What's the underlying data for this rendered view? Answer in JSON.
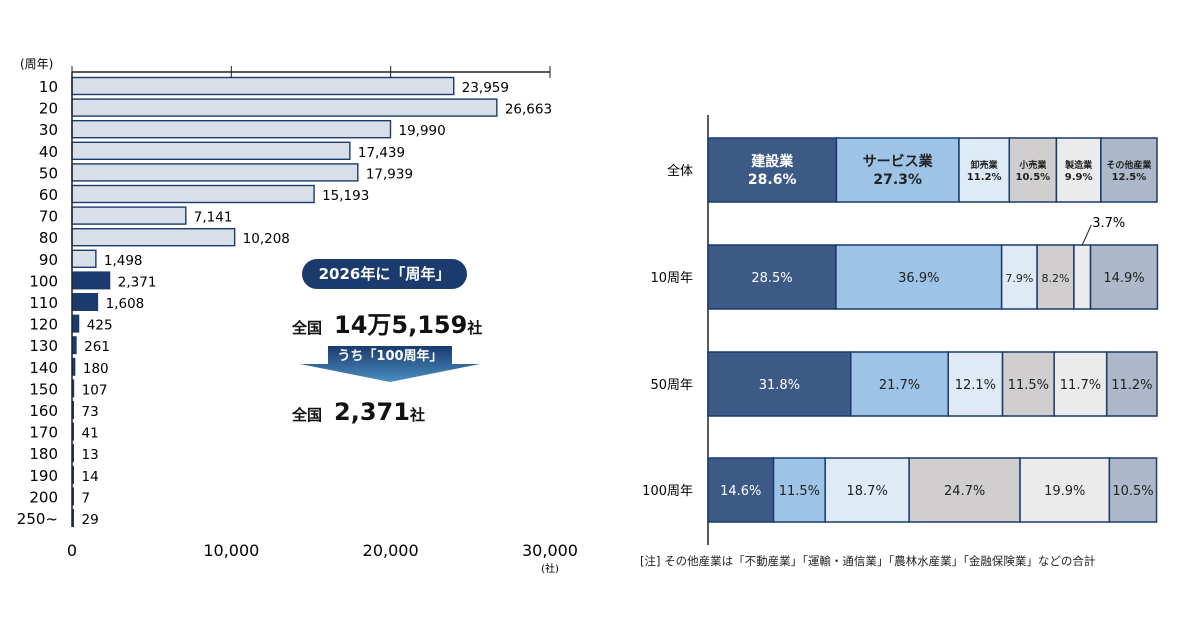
{
  "chart_data": [
    {
      "type": "bar",
      "orientation": "horizontal",
      "ylabel": "(周年)",
      "xunit": "(社)",
      "xlim": [
        0,
        30000
      ],
      "xticks": [
        "0",
        "10,000",
        "20,000",
        "30,000"
      ],
      "categories": [
        "10",
        "20",
        "30",
        "40",
        "50",
        "60",
        "70",
        "80",
        "90",
        "100",
        "110",
        "120",
        "130",
        "140",
        "150",
        "160",
        "170",
        "180",
        "190",
        "200",
        "250~"
      ],
      "values": [
        23959,
        26663,
        19990,
        17439,
        17939,
        15193,
        7141,
        10208,
        1498,
        2371,
        1608,
        425,
        261,
        180,
        107,
        73,
        41,
        13,
        14,
        7,
        29
      ],
      "labels": [
        "23,959",
        "26,663",
        "19,990",
        "17,439",
        "17,939",
        "15,193",
        "7,141",
        "10,208",
        "1,498",
        "2,371",
        "1,608",
        "425",
        "261",
        "180",
        "107",
        "73",
        "41",
        "13",
        "14",
        "7",
        "29"
      ],
      "highlight_from": "100",
      "colors": {
        "normal": "#d9dfe9",
        "highlight": "#1b3a6e",
        "border": "#1b3a6e"
      }
    },
    {
      "type": "bar",
      "orientation": "horizontal",
      "stacked": true,
      "percent": true,
      "categories": [
        "全体",
        "10周年",
        "50周年",
        "100周年"
      ],
      "series": [
        {
          "name": "建設業",
          "values": [
            28.6,
            28.5,
            31.8,
            14.6
          ],
          "color": "#3d5a87",
          "text": "#ffffff"
        },
        {
          "name": "サービス業",
          "values": [
            27.3,
            36.9,
            21.7,
            11.5
          ],
          "color": "#9dc3e6",
          "text": "#222222"
        },
        {
          "name": "卸売業",
          "values": [
            11.2,
            7.9,
            12.1,
            18.7
          ],
          "color": "#deeaf6",
          "text": "#222222"
        },
        {
          "name": "小売業",
          "values": [
            10.5,
            8.2,
            11.5,
            24.7
          ],
          "color": "#d0cece",
          "text": "#222222"
        },
        {
          "name": "製造業",
          "values": [
            9.9,
            3.7,
            11.7,
            19.9
          ],
          "color": "#ebebeb",
          "text": "#222222"
        },
        {
          "name": "その他産業",
          "values": [
            12.5,
            14.9,
            11.2,
            10.5
          ],
          "color": "#adb9ca",
          "text": "#222222"
        }
      ],
      "labels": [
        [
          "28.6%",
          "27.3%",
          "11.2%",
          "10.5%",
          "9.9%",
          "12.5%"
        ],
        [
          "28.5%",
          "36.9%",
          "7.9%",
          "8.2%",
          "3.7%",
          "14.9%"
        ],
        [
          "31.8%",
          "21.7%",
          "12.1%",
          "11.5%",
          "11.7%",
          "11.2%"
        ],
        [
          "14.6%",
          "11.5%",
          "18.7%",
          "24.7%",
          "19.9%",
          "10.5%"
        ]
      ]
    }
  ],
  "callout": {
    "pill": "2026年に「周年」",
    "total_label": "全国",
    "total_value": "14万5,159",
    "total_unit": "社",
    "arrow_label": "うち「100周年」",
    "sub_label": "全国",
    "sub_value": "2,371",
    "sub_unit": "社"
  },
  "note": "[注] その他産業は「不動産業」「運輸・通信業」「農林水産業」「金融保険業」などの合計"
}
